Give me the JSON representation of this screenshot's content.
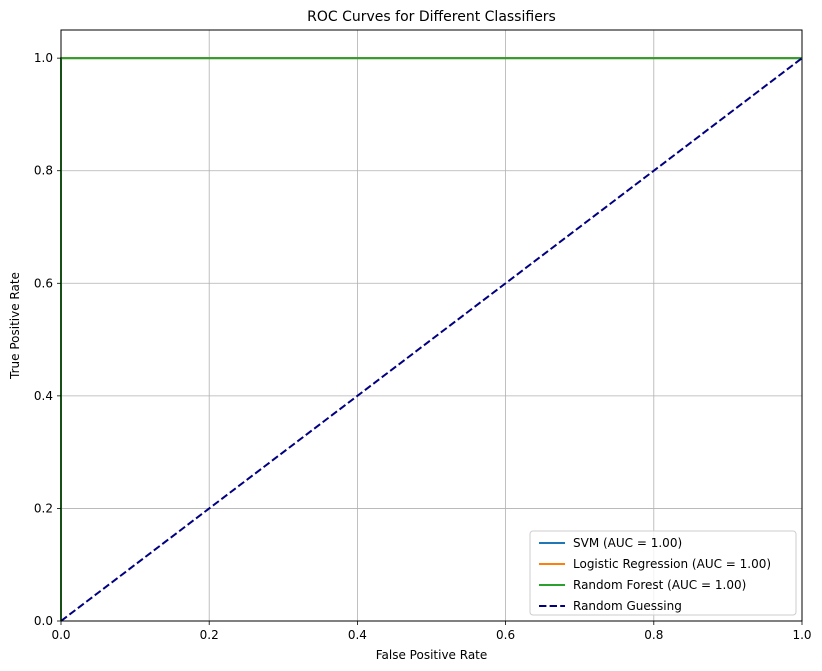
{
  "chart_data": {
    "type": "line",
    "title": "ROC Curves for Different Classifiers",
    "xlabel": "False Positive Rate",
    "ylabel": "True Positive Rate",
    "xlim": [
      0.0,
      1.0
    ],
    "ylim": [
      0.0,
      1.05
    ],
    "xticks": [
      0.0,
      0.2,
      0.4,
      0.6,
      0.8,
      1.0
    ],
    "yticks": [
      0.0,
      0.2,
      0.4,
      0.6,
      0.8,
      1.0
    ],
    "xtick_labels": [
      "0.0",
      "0.2",
      "0.4",
      "0.6",
      "0.8",
      "1.0"
    ],
    "ytick_labels": [
      "0.0",
      "0.2",
      "0.4",
      "0.6",
      "0.8",
      "1.0"
    ],
    "grid": true,
    "legend_position": "lower-right",
    "series": [
      {
        "name": "SVM (AUC = 1.00)",
        "color": "#1f77b4",
        "linestyle": "solid",
        "x": [
          0.0,
          0.0,
          1.0
        ],
        "y": [
          0.0,
          1.0,
          1.0
        ]
      },
      {
        "name": "Logistic Regression (AUC = 1.00)",
        "color": "#ff7f0e",
        "linestyle": "solid",
        "x": [
          0.0,
          0.0,
          1.0
        ],
        "y": [
          0.0,
          1.0,
          1.0
        ]
      },
      {
        "name": "Random Forest (AUC = 1.00)",
        "color": "#2ca02c",
        "linestyle": "solid",
        "x": [
          0.0,
          0.0,
          1.0
        ],
        "y": [
          0.0,
          1.0,
          1.0
        ]
      },
      {
        "name": "Random Guessing",
        "color": "#000080",
        "linestyle": "dashed",
        "x": [
          0.0,
          1.0
        ],
        "y": [
          0.0,
          1.0
        ]
      }
    ]
  }
}
